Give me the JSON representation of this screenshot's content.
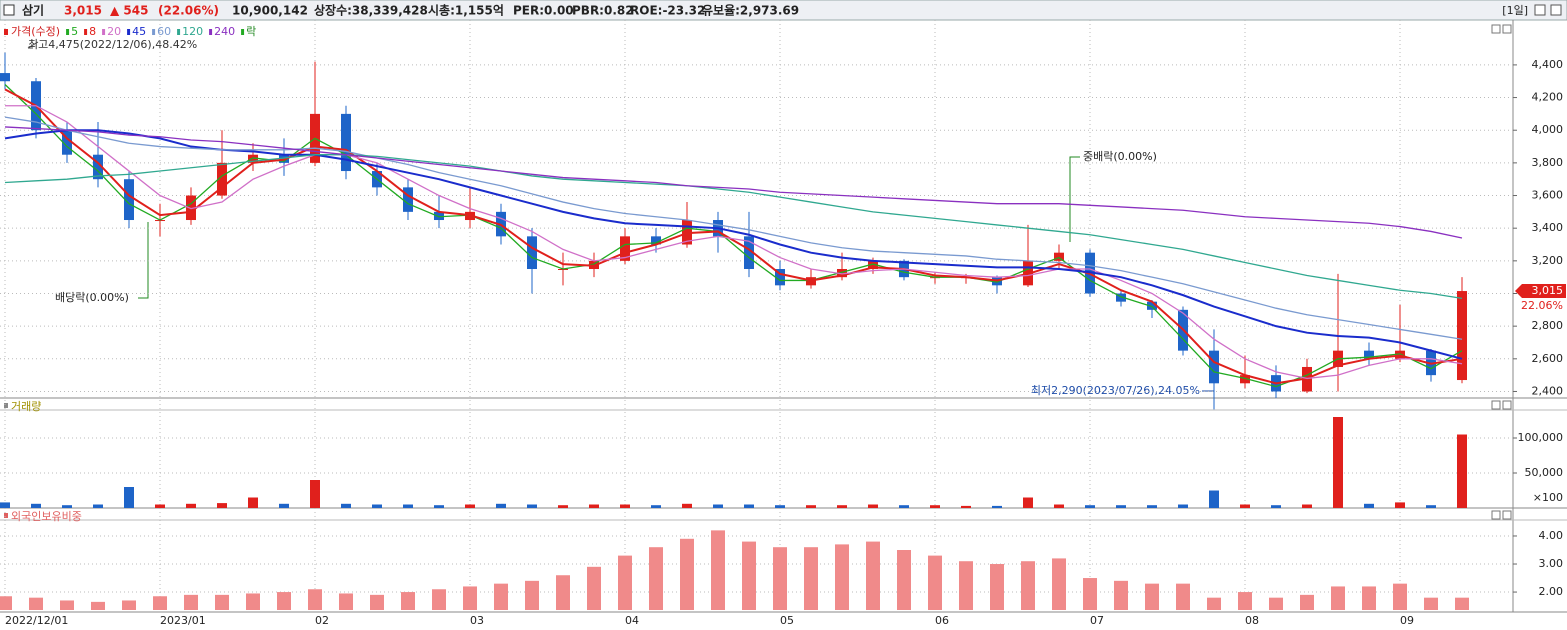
{
  "chart_data": {
    "type": "candlestick",
    "header": {
      "name": "삼기",
      "price": "3,015",
      "change": "▲ 545",
      "change_pct": "(22.06%)",
      "volume": "10,900,142",
      "listed": "상장수:38,339,428",
      "cap": "시총:1,155억",
      "per": "PER:0.00",
      "pbr": "PBR:0.82",
      "roe": "ROE:-23.32",
      "reserve": "유보율:2,973.69",
      "period": "[1일]"
    },
    "price_label": "가격(수정)",
    "ex_label": "락",
    "up_color": "#e0201c",
    "down_color": "#1e64c8",
    "categories": [
      "2022/12/01",
      null,
      null,
      null,
      null,
      "2023/01",
      null,
      null,
      null,
      null,
      "02",
      null,
      null,
      null,
      null,
      "03",
      null,
      null,
      null,
      null,
      "04",
      null,
      null,
      null,
      null,
      "05",
      null,
      null,
      null,
      null,
      "06",
      null,
      null,
      null,
      null,
      "07",
      null,
      null,
      null,
      null,
      "08",
      null,
      null,
      null,
      null,
      "09",
      null,
      null
    ],
    "ohlc": [
      [
        4350,
        4475,
        4250,
        4300
      ],
      [
        4300,
        4320,
        3950,
        4000
      ],
      [
        4000,
        4050,
        3800,
        3850
      ],
      [
        3850,
        4050,
        3650,
        3700
      ],
      [
        3700,
        3750,
        3400,
        3450
      ],
      [
        3450,
        3550,
        3350,
        3450
      ],
      [
        3450,
        3650,
        3420,
        3600
      ],
      [
        3600,
        4000,
        3580,
        3800
      ],
      [
        3800,
        3920,
        3750,
        3850
      ],
      [
        3850,
        3950,
        3720,
        3800
      ],
      [
        3800,
        4420,
        3780,
        4100
      ],
      [
        4100,
        4150,
        3700,
        3750
      ],
      [
        3750,
        3800,
        3600,
        3650
      ],
      [
        3650,
        3700,
        3450,
        3500
      ],
      [
        3500,
        3600,
        3400,
        3450
      ],
      [
        3450,
        3650,
        3400,
        3500
      ],
      [
        3500,
        3550,
        3300,
        3350
      ],
      [
        3350,
        3400,
        3000,
        3150
      ],
      [
        3150,
        3250,
        3050,
        3150
      ],
      [
        3150,
        3250,
        3100,
        3200
      ],
      [
        3200,
        3400,
        3180,
        3350
      ],
      [
        3350,
        3400,
        3250,
        3300
      ],
      [
        3300,
        3560,
        3280,
        3450
      ],
      [
        3450,
        3500,
        3250,
        3350
      ],
      [
        3350,
        3500,
        3100,
        3150
      ],
      [
        3150,
        3200,
        3020,
        3050
      ],
      [
        3050,
        3150,
        3030,
        3100
      ],
      [
        3100,
        3250,
        3080,
        3150
      ],
      [
        3150,
        3220,
        3120,
        3200
      ],
      [
        3200,
        3210,
        3080,
        3100
      ],
      [
        3100,
        3130,
        3060,
        3100
      ],
      [
        3100,
        3120,
        3060,
        3100
      ],
      [
        3100,
        3110,
        3000,
        3050
      ],
      [
        3050,
        3420,
        3040,
        3200
      ],
      [
        3200,
        3300,
        3150,
        3250
      ],
      [
        3250,
        3270,
        2980,
        3000
      ],
      [
        3000,
        3020,
        2920,
        2950
      ],
      [
        2950,
        2960,
        2850,
        2900
      ],
      [
        2900,
        2920,
        2620,
        2650
      ],
      [
        2650,
        2780,
        2290,
        2450
      ],
      [
        2450,
        2620,
        2420,
        2500
      ],
      [
        2500,
        2560,
        2360,
        2400
      ],
      [
        2400,
        2600,
        2390,
        2550
      ],
      [
        2550,
        3120,
        2400,
        2650
      ],
      [
        2650,
        2700,
        2560,
        2600
      ],
      [
        2600,
        2930,
        2580,
        2650
      ],
      [
        2650,
        2660,
        2460,
        2500
      ],
      [
        2470,
        3100,
        2450,
        3015
      ]
    ],
    "series": [
      {
        "name": "5",
        "color": "#22aa22",
        "values": [
          4280,
          4100,
          3900,
          3750,
          3550,
          3450,
          3550,
          3720,
          3830,
          3810,
          3950,
          3850,
          3700,
          3550,
          3470,
          3480,
          3400,
          3220,
          3150,
          3180,
          3300,
          3310,
          3400,
          3380,
          3220,
          3080,
          3080,
          3130,
          3180,
          3130,
          3100,
          3100,
          3070,
          3150,
          3220,
          3080,
          2980,
          2920,
          2720,
          2520,
          2480,
          2430,
          2500,
          2600,
          2610,
          2630,
          2540,
          2650
        ]
      },
      {
        "name": "8",
        "color": "#e0201c",
        "values": [
          4250,
          4150,
          3950,
          3800,
          3600,
          3480,
          3500,
          3650,
          3800,
          3820,
          3900,
          3880,
          3750,
          3600,
          3500,
          3480,
          3420,
          3280,
          3180,
          3170,
          3250,
          3300,
          3370,
          3380,
          3270,
          3120,
          3080,
          3110,
          3160,
          3150,
          3110,
          3100,
          3080,
          3120,
          3180,
          3120,
          3020,
          2950,
          2780,
          2580,
          2500,
          2450,
          2480,
          2560,
          2600,
          2620,
          2570,
          2600
        ]
      },
      {
        "name": "20",
        "color": "#d070c8",
        "values": [
          4150,
          4150,
          4050,
          3900,
          3750,
          3600,
          3520,
          3560,
          3700,
          3780,
          3850,
          3850,
          3800,
          3700,
          3600,
          3520,
          3460,
          3380,
          3270,
          3200,
          3220,
          3270,
          3320,
          3350,
          3320,
          3220,
          3150,
          3120,
          3140,
          3150,
          3130,
          3110,
          3100,
          3110,
          3150,
          3150,
          3080,
          3000,
          2880,
          2720,
          2600,
          2520,
          2480,
          2500,
          2560,
          2600,
          2600,
          2570
        ]
      },
      {
        "name": "45",
        "color": "#1a2ccc",
        "values": [
          3950,
          3980,
          4000,
          4000,
          3980,
          3950,
          3900,
          3880,
          3870,
          3850,
          3850,
          3820,
          3780,
          3740,
          3700,
          3650,
          3600,
          3550,
          3500,
          3460,
          3430,
          3420,
          3410,
          3400,
          3360,
          3300,
          3250,
          3220,
          3200,
          3190,
          3180,
          3170,
          3160,
          3160,
          3150,
          3130,
          3100,
          3050,
          2990,
          2920,
          2860,
          2800,
          2760,
          2740,
          2730,
          2700,
          2650,
          2600
        ]
      },
      {
        "name": "60",
        "color": "#7a9ad0",
        "values": [
          4080,
          4050,
          4000,
          3960,
          3920,
          3900,
          3890,
          3880,
          3880,
          3880,
          3890,
          3870,
          3830,
          3790,
          3740,
          3700,
          3660,
          3610,
          3560,
          3520,
          3490,
          3470,
          3450,
          3420,
          3390,
          3350,
          3310,
          3280,
          3260,
          3250,
          3240,
          3230,
          3210,
          3200,
          3190,
          3170,
          3140,
          3100,
          3060,
          3010,
          2960,
          2910,
          2870,
          2840,
          2810,
          2780,
          2750,
          2720
        ]
      },
      {
        "name": "120",
        "color": "#30a890",
        "values": [
          3680,
          3690,
          3700,
          3720,
          3730,
          3750,
          3770,
          3790,
          3810,
          3830,
          3850,
          3850,
          3840,
          3820,
          3800,
          3780,
          3750,
          3720,
          3700,
          3690,
          3680,
          3670,
          3660,
          3640,
          3620,
          3590,
          3560,
          3530,
          3500,
          3480,
          3460,
          3440,
          3420,
          3400,
          3380,
          3360,
          3330,
          3300,
          3270,
          3230,
          3190,
          3150,
          3110,
          3080,
          3050,
          3020,
          3000,
          2970
        ]
      },
      {
        "name": "240",
        "color": "#8a30c0",
        "values": [
          4020,
          4010,
          4000,
          3990,
          3970,
          3960,
          3940,
          3930,
          3910,
          3890,
          3870,
          3850,
          3830,
          3810,
          3790,
          3770,
          3750,
          3730,
          3710,
          3700,
          3690,
          3680,
          3660,
          3650,
          3640,
          3620,
          3610,
          3600,
          3590,
          3580,
          3570,
          3560,
          3550,
          3550,
          3550,
          3540,
          3530,
          3520,
          3510,
          3490,
          3470,
          3460,
          3450,
          3440,
          3430,
          3410,
          3380,
          3340
        ]
      }
    ],
    "ylim": [
      2360,
      4675
    ],
    "yticks": [
      {
        "value": 2400,
        "label": "2,400"
      },
      {
        "value": 2600,
        "label": "2,600"
      },
      {
        "value": 2800,
        "label": "2,800"
      },
      {
        "value": 3000,
        "label": "3,000"
      },
      {
        "value": 3200,
        "label": "3,200"
      },
      {
        "value": 3400,
        "label": "3,400"
      },
      {
        "value": 3600,
        "label": "3,600"
      },
      {
        "value": 3800,
        "label": "3,800"
      },
      {
        "value": 4000,
        "label": "4,000"
      },
      {
        "value": 4200,
        "label": "4,200"
      },
      {
        "value": 4400,
        "label": "4,400"
      }
    ],
    "grid": true,
    "annotations": {
      "high": "최고4,475(2022/12/06),48.42%",
      "dividend": "배당락(0.00%)",
      "mid_dividend": "중배락(0.00%)",
      "low": "최저2,290(2023/07/26),24.05%"
    },
    "price_tag": {
      "price": "3,015",
      "change": "22.06%"
    },
    "volume": {
      "title": "거래량",
      "unit": "×100",
      "values": [
        8000,
        6000,
        4000,
        5000,
        30000,
        5000,
        6000,
        7000,
        15000,
        6000,
        40000,
        6000,
        5000,
        5000,
        4000,
        5000,
        6000,
        5000,
        4000,
        5000,
        5000,
        4000,
        6000,
        5000,
        5000,
        4000,
        4000,
        4000,
        5000,
        4000,
        4000,
        3000,
        3000,
        15000,
        5000,
        4000,
        4000,
        4000,
        5000,
        25000,
        5000,
        4000,
        5000,
        130000,
        6000,
        8000,
        4000,
        105000
      ],
      "ylim": [
        0,
        140000
      ],
      "yticks": [
        {
          "value": 50000,
          "label": "50,000"
        },
        {
          "value": 100000,
          "label": "100,000"
        }
      ]
    },
    "foreign": {
      "title": "외국인보유비중",
      "color": "#f08a8a",
      "values": [
        1.85,
        1.8,
        1.7,
        1.65,
        1.7,
        1.85,
        1.9,
        1.9,
        1.95,
        2.0,
        2.1,
        1.95,
        1.9,
        2.0,
        2.1,
        2.2,
        2.3,
        2.4,
        2.6,
        2.9,
        3.3,
        3.6,
        3.9,
        4.2,
        3.8,
        3.6,
        3.6,
        3.7,
        3.8,
        3.5,
        3.3,
        3.1,
        3.0,
        3.1,
        3.2,
        2.5,
        2.4,
        2.3,
        2.3,
        1.8,
        2.0,
        1.8,
        1.9,
        2.2,
        2.2,
        2.3,
        1.8,
        1.8
      ],
      "ylim": [
        1.36,
        4.57
      ],
      "yticks": [
        {
          "value": 2,
          "label": "2.00"
        },
        {
          "value": 3,
          "label": "3.00"
        },
        {
          "value": 4,
          "label": "4.00"
        }
      ]
    }
  }
}
